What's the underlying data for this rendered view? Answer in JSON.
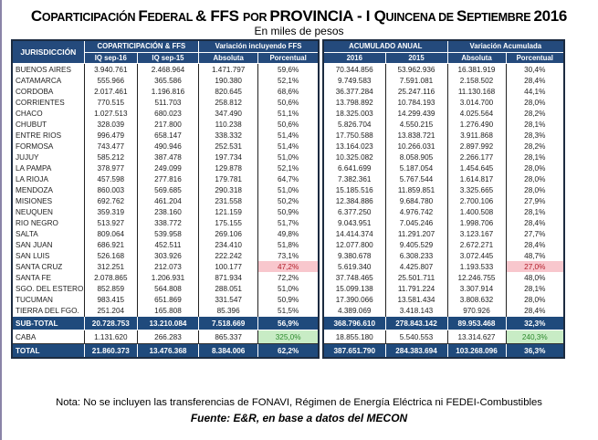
{
  "title": {
    "w1": "C",
    "w1s": "OPARTICIPACIÓN ",
    "w2": "F",
    "w2s": "EDERAL ",
    "w3": "& FFS ",
    "w4s": "POR ",
    "w5": "PROVINCIA - I Q",
    "w5s": "UINCENA DE ",
    "w6": "S",
    "w6s": "EPTIEMBRE ",
    "w7": "2016"
  },
  "subtitle": "En miles de pesos",
  "headers": {
    "jurisdiccion": "JURISDICCIÓN",
    "copart": "COPARTICIPACIÓN & FFS",
    "var_ffs": "Variación incluyendo FFS",
    "acum": "ACUMULADO ANUAL",
    "var_acum": "Variación Acumulada",
    "iq16": "IQ sep-16",
    "iq15": "IQ sep-15",
    "abs": "Absoluta",
    "pct": "Porcentual",
    "y2016": "2016",
    "y2015": "2015",
    "abs2": "Absoluta",
    "pct2": "Porcentual"
  },
  "rows": [
    [
      "BUENOS AIRES",
      "3.940.761",
      "2.468.964",
      "1.471.797",
      "59,6%",
      "70.344.856",
      "53.962.936",
      "16.381.919",
      "30,4%"
    ],
    [
      "CATAMARCA",
      "555.966",
      "365.586",
      "190.380",
      "52,1%",
      "9.749.583",
      "7.591.081",
      "2.158.502",
      "28,4%"
    ],
    [
      "CORDOBA",
      "2.017.461",
      "1.196.816",
      "820.645",
      "68,6%",
      "36.377.284",
      "25.247.116",
      "11.130.168",
      "44,1%"
    ],
    [
      "CORRIENTES",
      "770.515",
      "511.703",
      "258.812",
      "50,6%",
      "13.798.892",
      "10.784.193",
      "3.014.700",
      "28,0%"
    ],
    [
      "CHACO",
      "1.027.513",
      "680.023",
      "347.490",
      "51,1%",
      "18.325.003",
      "14.299.439",
      "4.025.564",
      "28,2%"
    ],
    [
      "CHUBUT",
      "328.039",
      "217.800",
      "110.238",
      "50,6%",
      "5.826.704",
      "4.550.215",
      "1.276.490",
      "28,1%"
    ],
    [
      "ENTRE RIOS",
      "996.479",
      "658.147",
      "338.332",
      "51,4%",
      "17.750.588",
      "13.838.721",
      "3.911.868",
      "28,3%"
    ],
    [
      "FORMOSA",
      "743.477",
      "490.946",
      "252.531",
      "51,4%",
      "13.164.023",
      "10.266.031",
      "2.897.992",
      "28,2%"
    ],
    [
      "JUJUY",
      "585.212",
      "387.478",
      "197.734",
      "51,0%",
      "10.325.082",
      "8.058.905",
      "2.266.177",
      "28,1%"
    ],
    [
      "LA PAMPA",
      "378.977",
      "249.099",
      "129.878",
      "52,1%",
      "6.641.699",
      "5.187.054",
      "1.454.645",
      "28,0%"
    ],
    [
      "LA RIOJA",
      "457.598",
      "277.816",
      "179.781",
      "64,7%",
      "7.382.361",
      "5.767.544",
      "1.614.817",
      "28,0%"
    ],
    [
      "MENDOZA",
      "860.003",
      "569.685",
      "290.318",
      "51,0%",
      "15.185.516",
      "11.859.851",
      "3.325.665",
      "28,0%"
    ],
    [
      "MISIONES",
      "692.762",
      "461.204",
      "231.558",
      "50,2%",
      "12.384.886",
      "9.684.780",
      "2.700.106",
      "27,9%"
    ],
    [
      "NEUQUEN",
      "359.319",
      "238.160",
      "121.159",
      "50,9%",
      "6.377.250",
      "4.976.742",
      "1.400.508",
      "28,1%"
    ],
    [
      "RIO NEGRO",
      "513.927",
      "338.772",
      "175.155",
      "51,7%",
      "9.043.951",
      "7.045.246",
      "1.998.706",
      "28,4%"
    ],
    [
      "SALTA",
      "809.064",
      "539.958",
      "269.106",
      "49,8%",
      "14.414.374",
      "11.291.207",
      "3.123.167",
      "27,7%"
    ],
    [
      "SAN JUAN",
      "686.921",
      "452.511",
      "234.410",
      "51,8%",
      "12.077.800",
      "9.405.529",
      "2.672.271",
      "28,4%"
    ],
    [
      "SAN LUIS",
      "526.168",
      "303.926",
      "222.242",
      "73,1%",
      "9.380.678",
      "6.308.233",
      "3.072.445",
      "48,7%"
    ],
    [
      "SANTA CRUZ",
      "312.251",
      "212.073",
      "100.177",
      "47,2%",
      "5.619.340",
      "4.425.807",
      "1.193.533",
      "27,0%"
    ],
    [
      "SANTA FE",
      "2.078.865",
      "1.206.931",
      "871.934",
      "72,2%",
      "37.748.465",
      "25.501.711",
      "12.246.755",
      "48,0%"
    ],
    [
      "SGO. DEL ESTERO",
      "852.859",
      "564.808",
      "288.051",
      "51,0%",
      "15.099.138",
      "11.791.224",
      "3.307.914",
      "28,1%"
    ],
    [
      "TUCUMAN",
      "983.415",
      "651.869",
      "331.547",
      "50,9%",
      "17.390.066",
      "13.581.434",
      "3.808.632",
      "28,0%"
    ],
    [
      "TIERRA DEL FGO.",
      "251.204",
      "165.808",
      "85.396",
      "51,5%",
      "4.389.069",
      "3.418.143",
      "970.926",
      "28,4%"
    ]
  ],
  "subtotal": [
    "SUB-TOTAL",
    "20.728.753",
    "13.210.084",
    "7.518.669",
    "56,9%",
    "368.796.610",
    "278.843.142",
    "89.953.468",
    "32,3%"
  ],
  "caba": [
    "CABA",
    "1.131.620",
    "266.283",
    "865.337",
    "325,0%",
    "18.855.180",
    "5.540.553",
    "13.314.627",
    "240,3%"
  ],
  "total": [
    "TOTAL",
    "21.860.373",
    "13.476.368",
    "8.384.006",
    "62,2%",
    "387.651.790",
    "284.383.694",
    "103.268.096",
    "36,3%"
  ],
  "highlights": {
    "min_row": "SANTA CRUZ",
    "max_row": "CABA",
    "min_color": "#f8c7cd",
    "max_color": "#c8ecc5",
    "header_color": "#244a7c"
  },
  "note": "Nota: No se incluyen las transferencias de FONAVI, Régimen de Energía Eléctrica ni FEDEI-Combustibles",
  "source": "Fuente: E&R, en base a datos del MECON"
}
